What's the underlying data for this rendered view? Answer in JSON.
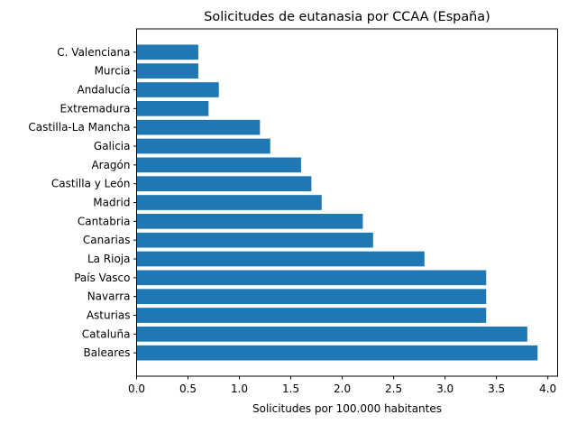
{
  "chart_data": {
    "type": "bar",
    "orientation": "horizontal",
    "title": "Solicitudes de eutanasia por CCAA (España)",
    "xlabel": "Solicitudes por 100.000 habitantes",
    "ylabel": "",
    "categories": [
      "Baleares",
      "Cataluña",
      "Asturias",
      "Navarra",
      "País Vasco",
      "La Rioja",
      "Canarias",
      "Cantabria",
      "Madrid",
      "Castilla y León",
      "Aragón",
      "Galicia",
      "Castilla-La Mancha",
      "Extremadura",
      "Andalucía",
      "Murcia",
      "C. Valenciana"
    ],
    "values": [
      3.9,
      3.8,
      3.4,
      3.4,
      3.4,
      2.8,
      2.3,
      2.2,
      1.8,
      1.7,
      1.6,
      1.3,
      1.2,
      0.7,
      0.8,
      0.6,
      0.6
    ],
    "xlim": [
      0,
      4.095
    ],
    "xticks": [
      "0.0",
      "0.5",
      "1.0",
      "1.5",
      "2.0",
      "2.5",
      "3.0",
      "3.5",
      "4.0"
    ],
    "grid": false,
    "bar_color": "#1f77b4"
  }
}
